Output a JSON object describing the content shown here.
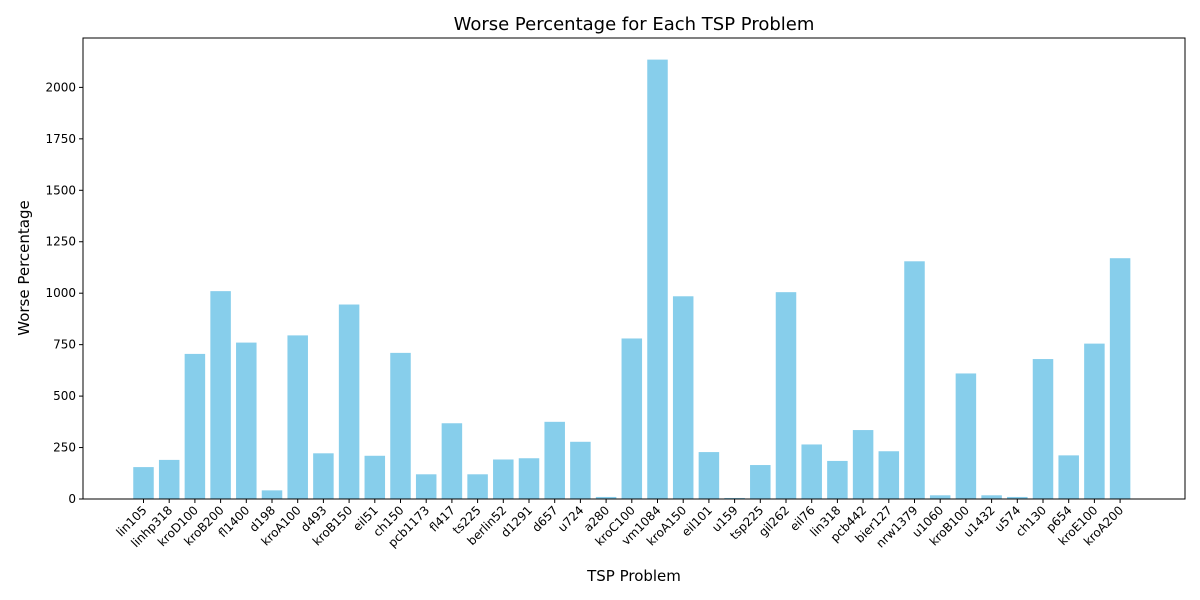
{
  "chart_data": {
    "type": "bar",
    "title": "Worse Percentage for Each TSP Problem",
    "xlabel": "TSP Problem",
    "ylabel": "Worse Percentage",
    "bar_color": "#87ceeb",
    "grid": false,
    "ylim": [
      0,
      2240
    ],
    "yticks": [
      0,
      250,
      500,
      750,
      1000,
      1250,
      1500,
      1750,
      2000
    ],
    "categories": [
      "lin105",
      "linhp318",
      "kroD100",
      "kroB200",
      "fl1400",
      "d198",
      "kroA100",
      "d493",
      "kroB150",
      "eil51",
      "ch150",
      "pcb1173",
      "fl417",
      "ts225",
      "berlin52",
      "d1291",
      "d657",
      "u724",
      "a280",
      "kroC100",
      "vm1084",
      "kroA150",
      "eil101",
      "u159",
      "tsp225",
      "gil262",
      "eil76",
      "lin318",
      "pcb442",
      "bier127",
      "nrw1379",
      "u1060",
      "kroB100",
      "u1432",
      "u574",
      "ch130",
      "p654",
      "kroE100",
      "kroA200"
    ],
    "values": [
      155,
      190,
      705,
      1010,
      760,
      42,
      795,
      222,
      945,
      210,
      710,
      120,
      368,
      120,
      192,
      198,
      375,
      278,
      10,
      780,
      2135,
      985,
      228,
      5,
      165,
      1005,
      265,
      185,
      335,
      232,
      1155,
      18,
      610,
      18,
      10,
      680,
      212,
      755,
      1170
    ]
  }
}
